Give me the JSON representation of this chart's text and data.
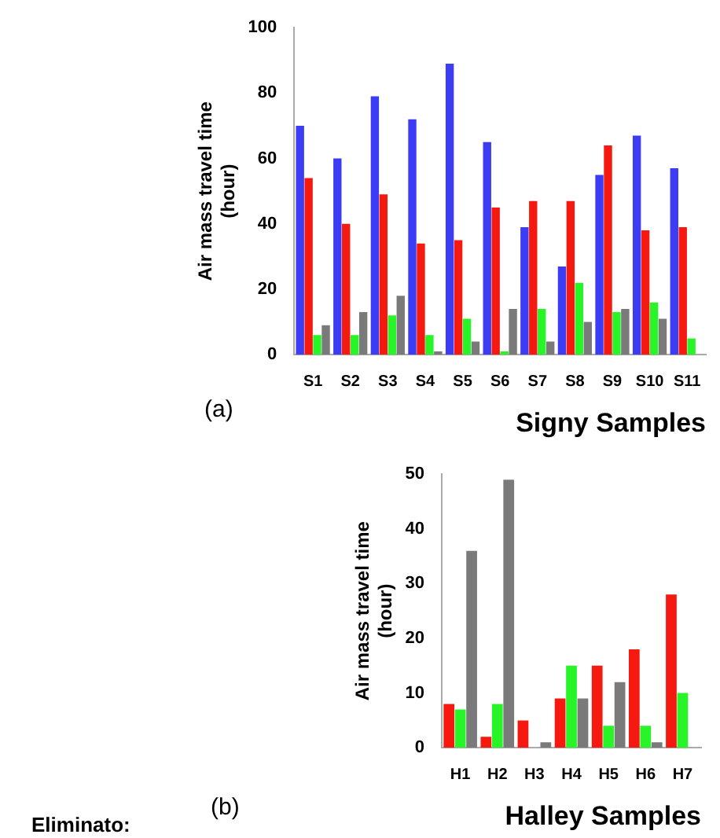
{
  "chart_data": [
    {
      "type": "bar",
      "title": "Signy Samples",
      "ylabel": "Air mass travel time\n(hour)",
      "annotations": [
        "(a)"
      ],
      "categories": [
        "S1",
        "S2",
        "S3",
        "S4",
        "S5",
        "S6",
        "S7",
        "S8",
        "S9",
        "S10",
        "S11"
      ],
      "series": [
        {
          "color": "#3c3cf5",
          "values": [
            70,
            60,
            79,
            72,
            89,
            65,
            39,
            27,
            55,
            67,
            57
          ]
        },
        {
          "color": "#f5190f",
          "values": [
            54,
            40,
            49,
            34,
            35,
            45,
            47,
            47,
            64,
            38,
            39
          ]
        },
        {
          "color": "#28f528",
          "values": [
            6,
            6,
            12,
            6,
            11,
            1,
            14,
            22,
            13,
            16,
            5
          ]
        },
        {
          "color": "#7a7a7a",
          "values": [
            9,
            13,
            18,
            1,
            4,
            14,
            4,
            10,
            14,
            11,
            null
          ]
        }
      ],
      "ylim": [
        0,
        100
      ],
      "yticks": [
        0,
        20,
        40,
        60,
        80,
        100
      ],
      "grid": false,
      "legend": false
    },
    {
      "type": "bar",
      "title": "Halley Samples",
      "ylabel": "Air mass travel time\n(hour)",
      "annotations": [
        "(b)",
        "Eliminato:"
      ],
      "categories": [
        "H1",
        "H2",
        "H3",
        "H4",
        "H5",
        "H6",
        "H7"
      ],
      "series": [
        {
          "color": "#f5190f",
          "values": [
            8,
            2,
            5,
            9,
            15,
            18,
            28
          ]
        },
        {
          "color": "#28f528",
          "values": [
            7,
            8,
            0,
            15,
            4,
            4,
            10
          ]
        },
        {
          "color": "#7a7a7a",
          "values": [
            36,
            49,
            1,
            9,
            12,
            1,
            null
          ]
        }
      ],
      "ylim": [
        0,
        50
      ],
      "yticks": [
        0,
        10,
        20,
        30,
        40,
        50
      ],
      "grid": false,
      "legend": false
    }
  ]
}
